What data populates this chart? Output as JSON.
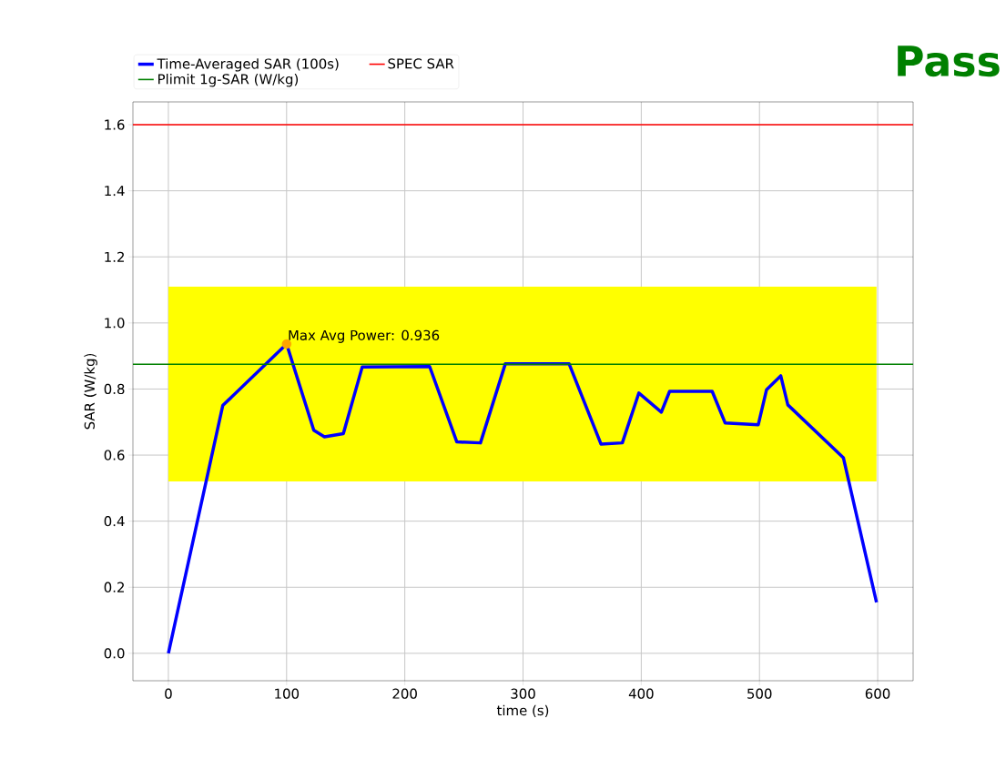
{
  "chart_data": {
    "type": "line",
    "xlabel": "time (s)",
    "ylabel": "SAR (W/kg)",
    "xlim": [
      -30,
      630
    ],
    "ylim": [
      -0.083,
      1.669
    ],
    "xticks": [
      0,
      100,
      200,
      300,
      400,
      500,
      600
    ],
    "yticks": [
      {
        "value": 0,
        "label": "0.0"
      },
      0.2,
      0.4,
      0.6,
      0.8,
      {
        "value": 1,
        "label": "1.0"
      },
      1.2,
      1.4,
      1.6
    ],
    "grid": true,
    "legend": "top",
    "series": [
      {
        "name": "Time-Averaged SAR (100s)",
        "color": "#0000ff",
        "x": [
          0,
          46,
          100,
          123,
          132,
          148,
          164,
          221,
          244,
          264,
          285,
          339,
          366,
          384,
          398,
          417,
          424,
          460,
          471,
          499,
          506,
          518,
          524,
          571,
          599
        ],
        "values": [
          0,
          0.75,
          0.936,
          0.675,
          0.655,
          0.665,
          0.867,
          0.868,
          0.64,
          0.637,
          0.876,
          0.876,
          0.633,
          0.637,
          0.788,
          0.73,
          0.793,
          0.793,
          0.697,
          0.692,
          0.798,
          0.84,
          0.752,
          0.592,
          0.154
        ]
      },
      {
        "type": "scatter",
        "marker": "circle",
        "color": "#ffa500",
        "x": [
          100
        ],
        "values": [
          0.936
        ]
      }
    ],
    "ref_lines": [
      {
        "axis": "y",
        "value": 1.6,
        "label": "SPEC SAR",
        "color": "#ff0000"
      },
      {
        "axis": "y",
        "value": 0.875,
        "label": "Plimit 1g-SAR (W/kg)",
        "color": "#008000"
      }
    ],
    "bands": [
      {
        "axis": "y",
        "from": 0.52,
        "to": 1.11,
        "color": "#ffff00"
      }
    ],
    "annotations": [
      "Pass",
      {
        "text": "Max Avg Power: 0.936",
        "x": 100,
        "y": 0.936
      }
    ]
  }
}
